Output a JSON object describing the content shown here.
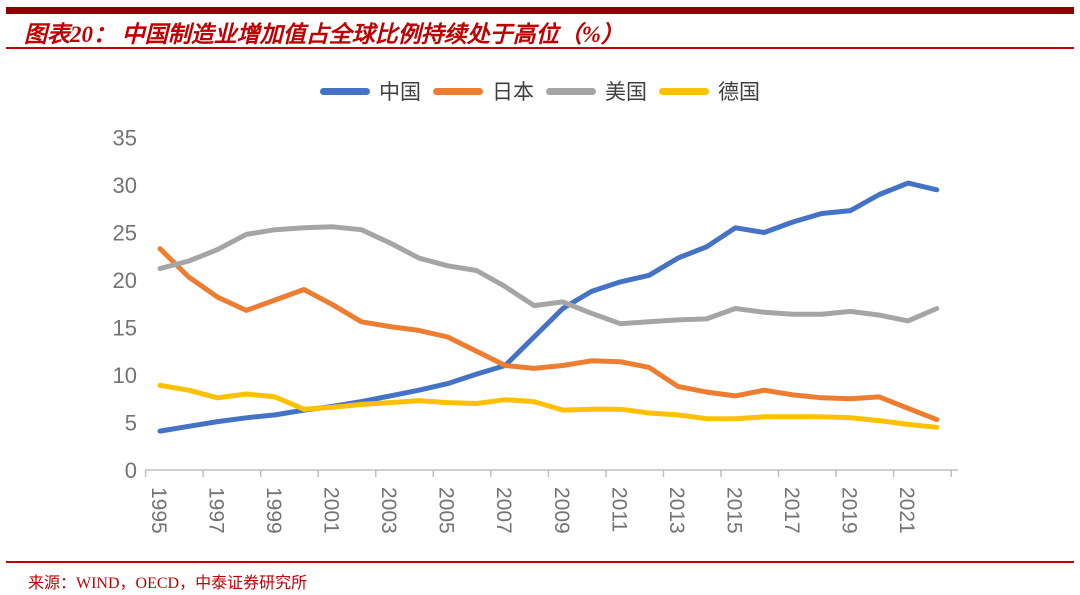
{
  "header": {
    "title": "图表20： 中国制造业增加值占全球比例持续处于高位（%）"
  },
  "footer": {
    "source": "来源：WIND，OECD，中泰证券研究所"
  },
  "colors": {
    "accent_red": "#C00000",
    "top_bar_dark_red": "#8B0000",
    "axis_line_gray": "#BFBFBF",
    "axis_label_gray": "#737373",
    "legend_text_gray": "#3f3f3f"
  },
  "chart_data": {
    "type": "line",
    "title": "中国制造业增加值占全球比例持续处于高位（%）",
    "xlabel": "",
    "ylabel": "",
    "grid": false,
    "legend_position": "top",
    "ylim": [
      0,
      35
    ],
    "y_ticks": [
      35,
      30,
      25,
      20,
      15,
      10,
      5,
      0
    ],
    "x": [
      1995,
      1996,
      1997,
      1998,
      1999,
      2000,
      2001,
      2002,
      2003,
      2004,
      2005,
      2006,
      2007,
      2008,
      2009,
      2010,
      2011,
      2012,
      2013,
      2014,
      2015,
      2016,
      2017,
      2018,
      2019,
      2020,
      2021,
      2022
    ],
    "x_tick_labels": [
      "1995",
      "1997",
      "1999",
      "2001",
      "2003",
      "2005",
      "2007",
      "2009",
      "2011",
      "2013",
      "2015",
      "2017",
      "2019",
      "2021"
    ],
    "series": [
      {
        "key": "china",
        "label": "中国",
        "color": "#4472C4",
        "values": [
          4.1,
          4.6,
          5.1,
          5.5,
          5.8,
          6.3,
          6.7,
          7.2,
          7.8,
          8.4,
          9.1,
          10.1,
          11.0,
          14.0,
          17.0,
          18.8,
          19.8,
          20.5,
          22.3,
          23.5,
          25.5,
          25.0,
          26.1,
          27.0,
          27.3,
          29.0,
          30.2,
          29.5
        ]
      },
      {
        "key": "japan",
        "label": "日本",
        "color": "#ED7D31",
        "values": [
          23.3,
          20.3,
          18.2,
          16.8,
          17.9,
          19.0,
          17.4,
          15.6,
          15.1,
          14.7,
          14.0,
          12.5,
          11.0,
          10.7,
          11.0,
          11.5,
          11.4,
          10.8,
          8.8,
          8.2,
          7.8,
          8.4,
          7.9,
          7.6,
          7.5,
          7.7,
          6.5,
          5.3
        ]
      },
      {
        "key": "usa",
        "label": "美国",
        "color": "#A5A5A5",
        "values": [
          21.2,
          22.0,
          23.2,
          24.8,
          25.3,
          25.5,
          25.6,
          25.3,
          23.9,
          22.3,
          21.5,
          21.0,
          19.3,
          17.3,
          17.7,
          16.5,
          15.4,
          15.6,
          15.8,
          15.9,
          17.0,
          16.6,
          16.4,
          16.4,
          16.7,
          16.3,
          15.7,
          17.0
        ]
      },
      {
        "key": "germany",
        "label": "德国",
        "color": "#FFC000",
        "values": [
          8.9,
          8.4,
          7.6,
          8.0,
          7.7,
          6.4,
          6.6,
          6.9,
          7.1,
          7.3,
          7.1,
          7.0,
          7.4,
          7.2,
          6.3,
          6.4,
          6.4,
          6.0,
          5.8,
          5.4,
          5.4,
          5.6,
          5.6,
          5.6,
          5.5,
          5.2,
          4.8,
          4.5
        ]
      }
    ]
  }
}
